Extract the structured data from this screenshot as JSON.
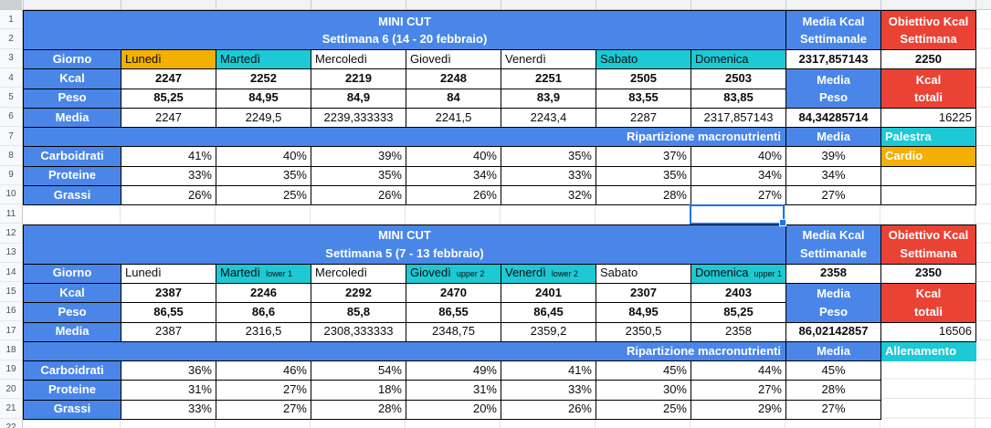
{
  "colors": {
    "blue": "#4a86e8",
    "red": "#ea4335",
    "cyan": "#1cc9d4",
    "orange": "#f3b000",
    "sel": "#1a73e8"
  },
  "sheet": {
    "row_numbers": [
      "1",
      "2",
      "3",
      "4",
      "5",
      "6",
      "7",
      "8",
      "9",
      "10",
      "11",
      "12",
      "13",
      "14",
      "15",
      "16",
      "17",
      "18",
      "19",
      "20",
      "21",
      "22"
    ]
  },
  "labels": {
    "giorno": "Giorno",
    "kcal": "Kcal",
    "peso": "Peso",
    "media": "Media",
    "ripartizione": "Ripartizione macronutrienti",
    "carboidrati": "Carboidrati",
    "proteine": "Proteine",
    "grassi": "Grassi",
    "media_kcal_sett": "Media Kcal\nSettimanale",
    "obiettivo_kcal": "Obiettivo Kcal\nSettimana",
    "media_peso": "Media\nPeso",
    "kcal_totali": "Kcal\ntotali"
  },
  "t1": {
    "title": "MINI CUT\nSettimana 6 (14 - 20 febbraio)",
    "days": [
      {
        "label": "Lunedì",
        "sub": "",
        "cls": "c-orange"
      },
      {
        "label": "Martedì",
        "sub": "",
        "cls": "c-cyan"
      },
      {
        "label": "Mercoledì",
        "sub": "",
        "cls": ""
      },
      {
        "label": "Giovedì",
        "sub": "",
        "cls": ""
      },
      {
        "label": "Venerdì",
        "sub": "",
        "cls": ""
      },
      {
        "label": "Sabato",
        "sub": "",
        "cls": "c-cyan"
      },
      {
        "label": "Domenica",
        "sub": "",
        "cls": "c-cyan"
      }
    ],
    "media_kcal_value": "2317,857143",
    "obiettivo_value": "2250",
    "kcal": [
      "2247",
      "2252",
      "2219",
      "2248",
      "2251",
      "2505",
      "2503"
    ],
    "peso": [
      "85,25",
      "84,95",
      "84,9",
      "84",
      "83,9",
      "83,55",
      "83,85"
    ],
    "media": [
      "2247",
      "2249,5",
      "2239,333333",
      "2241,5",
      "2243,4",
      "2287",
      "2317,857143"
    ],
    "media_peso_value": "84,34285714",
    "kcal_totali_value": "16225",
    "carboidrati": [
      "41%",
      "40%",
      "39%",
      "40%",
      "35%",
      "37%",
      "40%"
    ],
    "carboidrati_media": "39%",
    "proteine": [
      "33%",
      "35%",
      "35%",
      "34%",
      "33%",
      "35%",
      "34%"
    ],
    "proteine_media": "34%",
    "grassi": [
      "26%",
      "25%",
      "26%",
      "26%",
      "32%",
      "28%",
      "27%"
    ],
    "grassi_media": "27%",
    "sport": [
      {
        "label": "Palestra",
        "cls": "c-sport-cyan"
      },
      {
        "label": "Cardio",
        "cls": "c-sport-orange"
      },
      {
        "label": "",
        "cls": ""
      },
      {
        "label": "",
        "cls": ""
      }
    ]
  },
  "t2": {
    "title": "MINI CUT\nSettimana 5 (7 - 13 febbraio)",
    "days": [
      {
        "label": "Lunedì",
        "sub": "",
        "cls": ""
      },
      {
        "label": "Martedì",
        "sub": "lower 1",
        "cls": "c-cyan"
      },
      {
        "label": "Mercoledì",
        "sub": "",
        "cls": ""
      },
      {
        "label": "Giovedì",
        "sub": "upper 2",
        "cls": "c-cyan"
      },
      {
        "label": "Venerdì",
        "sub": "lower 2",
        "cls": "c-cyan"
      },
      {
        "label": "Sabato",
        "sub": "",
        "cls": ""
      },
      {
        "label": "Domenica",
        "sub": "upper 1",
        "cls": "c-cyan"
      }
    ],
    "media_kcal_value": "2358",
    "obiettivo_value": "2350",
    "kcal": [
      "2387",
      "2246",
      "2292",
      "2470",
      "2401",
      "2307",
      "2403"
    ],
    "peso": [
      "86,55",
      "86,6",
      "85,8",
      "86,55",
      "86,45",
      "84,95",
      "85,25"
    ],
    "media": [
      "2387",
      "2316,5",
      "2308,333333",
      "2348,75",
      "2359,2",
      "2350,5",
      "2358"
    ],
    "media_peso_value": "86,02142857",
    "kcal_totali_value": "16506",
    "carboidrati": [
      "36%",
      "46%",
      "54%",
      "49%",
      "41%",
      "45%",
      "44%"
    ],
    "carboidrati_media": "45%",
    "proteine": [
      "31%",
      "27%",
      "18%",
      "31%",
      "33%",
      "30%",
      "27%"
    ],
    "proteine_media": "28%",
    "grassi": [
      "33%",
      "27%",
      "28%",
      "20%",
      "26%",
      "25%",
      "29%"
    ],
    "grassi_media": "27%",
    "sport": [
      {
        "label": "Allenamento",
        "cls": "c-sport-cyan noborder"
      },
      {
        "label": "",
        "cls": "ghost"
      },
      {
        "label": "",
        "cls": "ghost"
      },
      {
        "label": "",
        "cls": "ghost"
      }
    ]
  }
}
